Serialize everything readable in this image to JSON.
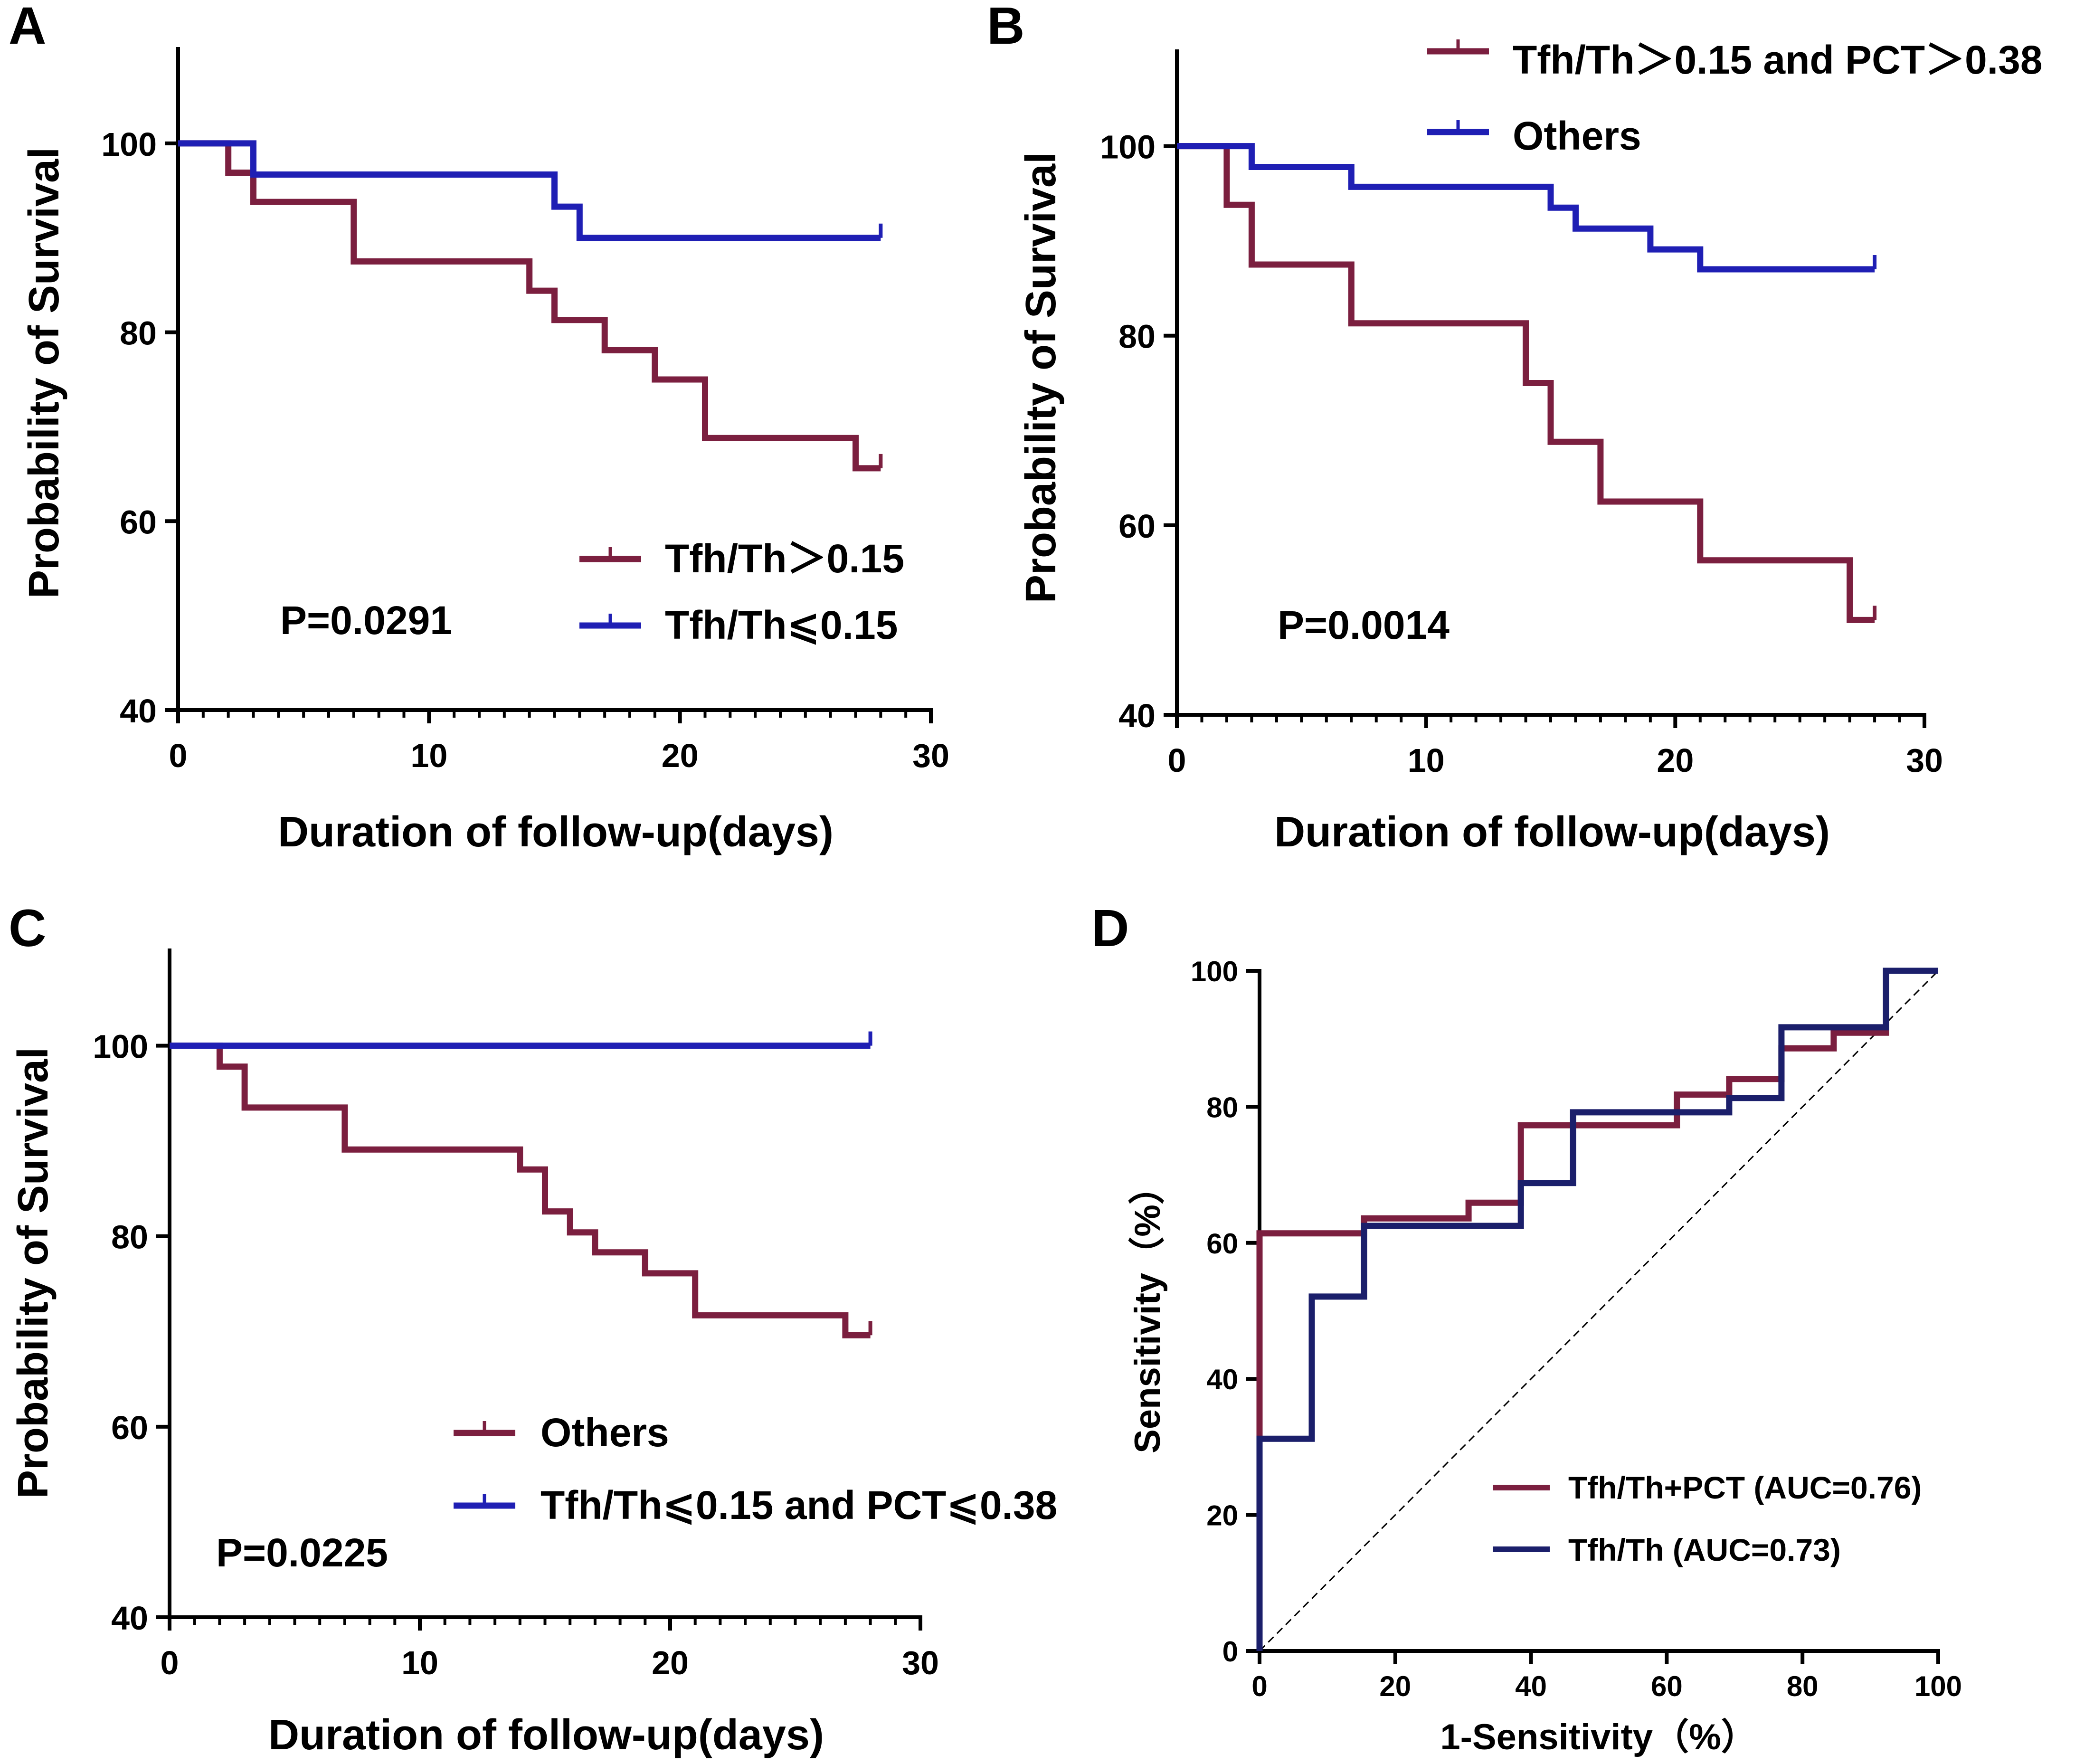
{
  "colors": {
    "maroon": "#7b1f3f",
    "blue": "#1f1fb4",
    "navy": "#1b1f6b"
  },
  "chart_data": [
    {
      "panel": "A",
      "type": "line",
      "subtype": "kaplan-meier",
      "xlabel": "Duration of follow-up(days)",
      "ylabel": "Probability of Survival",
      "xlim": [
        0,
        30
      ],
      "ylim": [
        40,
        110
      ],
      "xticks": [
        "0",
        "10",
        "20",
        "30"
      ],
      "yticks": [
        "40",
        "60",
        "80",
        "100"
      ],
      "annotation": "P=0.0291",
      "legend_position": "bottom-right",
      "series": [
        {
          "name": "Tfh/Th＞0.15",
          "color": "#7b1f3f",
          "times": [
            0,
            2,
            3,
            7,
            14,
            15,
            17,
            19,
            21,
            27,
            28
          ],
          "survival": [
            100,
            96.9,
            93.8,
            87.5,
            84.4,
            81.3,
            78.1,
            75.0,
            68.8,
            65.6,
            65.6
          ]
        },
        {
          "name": "Tfh/Th⩽0.15",
          "color": "#1f1fb4",
          "times": [
            0,
            3,
            15,
            16,
            28
          ],
          "survival": [
            100,
            96.7,
            93.3,
            90.0,
            90.0
          ]
        }
      ]
    },
    {
      "panel": "B",
      "type": "line",
      "subtype": "kaplan-meier",
      "xlabel": "Duration of follow-up(days)",
      "ylabel": "Probability of Survival",
      "xlim": [
        0,
        30
      ],
      "ylim": [
        40,
        110
      ],
      "xticks": [
        "0",
        "10",
        "20",
        "30"
      ],
      "yticks": [
        "40",
        "60",
        "80",
        "100"
      ],
      "annotation": "P=0.0014",
      "legend_position": "top-right",
      "series": [
        {
          "name": "Tfh/Th＞0.15 and PCT＞0.38",
          "color": "#7b1f3f",
          "times": [
            0,
            2,
            3,
            7,
            14,
            15,
            17,
            21,
            27,
            28
          ],
          "survival": [
            100,
            93.8,
            87.5,
            81.3,
            75.0,
            68.8,
            62.5,
            56.3,
            50.0,
            50.0
          ]
        },
        {
          "name": "Others",
          "color": "#1f1fb4",
          "times": [
            0,
            3,
            7,
            15,
            16,
            19,
            21,
            28
          ],
          "survival": [
            100,
            97.8,
            95.7,
            93.5,
            91.3,
            89.1,
            87.0,
            87.0
          ]
        }
      ]
    },
    {
      "panel": "C",
      "type": "line",
      "subtype": "kaplan-meier",
      "xlabel": "Duration of follow-up(days)",
      "ylabel": "Probability of Survival",
      "xlim": [
        0,
        30
      ],
      "ylim": [
        40,
        110
      ],
      "xticks": [
        "0",
        "10",
        "20",
        "30"
      ],
      "yticks": [
        "40",
        "60",
        "80",
        "100"
      ],
      "annotation": "P=0.0225",
      "legend_position": "bottom-right",
      "series": [
        {
          "name": "Others",
          "color": "#7b1f3f",
          "times": [
            0,
            2,
            3,
            7,
            14,
            15,
            16,
            17,
            19,
            21,
            27,
            28
          ],
          "survival": [
            100,
            97.8,
            93.5,
            89.1,
            87.0,
            82.6,
            80.4,
            78.3,
            76.1,
            71.7,
            69.6,
            69.6
          ]
        },
        {
          "name": "Tfh/Th⩽0.15 and PCT⩽0.38",
          "color": "#1f1fb4",
          "times": [
            0,
            28
          ],
          "survival": [
            100,
            100
          ]
        }
      ]
    },
    {
      "panel": "D",
      "type": "line",
      "subtype": "roc",
      "xlabel": "1-Sensitivity（%）",
      "ylabel": "Sensitivity（%）",
      "xlim": [
        0,
        100
      ],
      "ylim": [
        0,
        100
      ],
      "xticks": [
        "0",
        "20",
        "40",
        "60",
        "80",
        "100"
      ],
      "yticks": [
        "0",
        "20",
        "40",
        "60",
        "80",
        "100"
      ],
      "legend_position": "bottom-right",
      "reference_line": "diagonal",
      "series": [
        {
          "name": "Tfh/Th+PCT (AUC=0.76)",
          "color": "#7b1f3f",
          "x": [
            0,
            0,
            15.4,
            15.4,
            30.8,
            30.8,
            38.5,
            38.5,
            61.5,
            61.5,
            69.2,
            69.2,
            76.9,
            76.9,
            84.6,
            84.6,
            92.3,
            92.3,
            100
          ],
          "y": [
            0,
            61.4,
            61.4,
            63.6,
            63.6,
            65.9,
            65.9,
            77.3,
            77.3,
            81.8,
            81.8,
            84.1,
            84.1,
            88.6,
            88.6,
            90.9,
            90.9,
            100,
            100
          ]
        },
        {
          "name": "Tfh/Th (AUC=0.73)",
          "color": "#1b1f6b",
          "x": [
            0,
            0,
            7.7,
            7.7,
            15.4,
            15.4,
            38.5,
            38.5,
            46.2,
            46.2,
            61.5,
            61.5,
            69.2,
            69.2,
            76.9,
            76.9,
            92.3,
            92.3,
            100
          ],
          "y": [
            0,
            31.2,
            31.2,
            52.1,
            52.1,
            62.5,
            62.5,
            68.8,
            68.8,
            79.2,
            79.2,
            79.2,
            79.2,
            81.3,
            81.3,
            91.7,
            91.7,
            100,
            100
          ]
        }
      ]
    }
  ]
}
